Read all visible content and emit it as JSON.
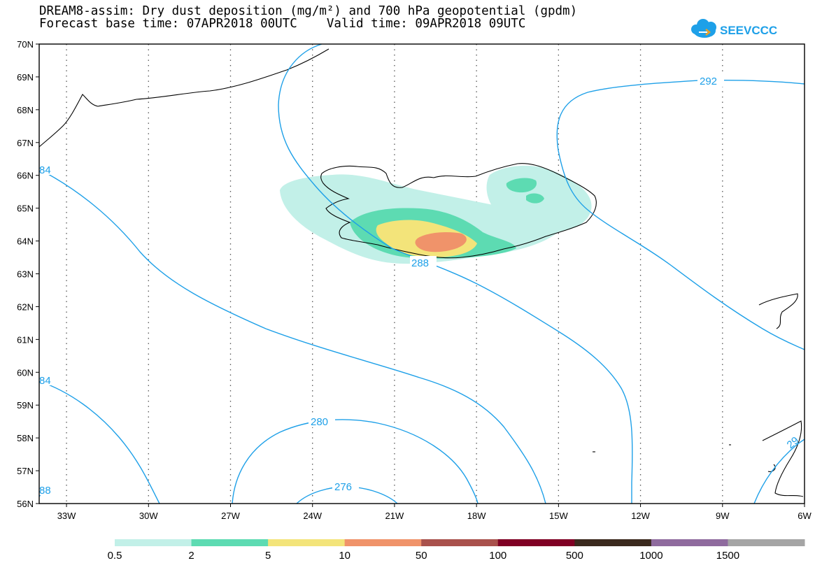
{
  "title": {
    "line1": "DREAM8-assim: Dry dust deposition (mg/m²) and 700 hPa geopotential (gpdm)",
    "line2": "Forecast base time: 07APR2018 00UTC    Valid time: 09APR2018 09UTC"
  },
  "logo": {
    "text": "SEEVCCC",
    "icon": "cloud-icon"
  },
  "map": {
    "lon_range": [
      -34,
      -6
    ],
    "lat_range": [
      56,
      70
    ],
    "lat_labels": [
      "70N",
      "69N",
      "68N",
      "67N",
      "66N",
      "65N",
      "64N",
      "63N",
      "62N",
      "61N",
      "60N",
      "59N",
      "58N",
      "57N",
      "56N"
    ],
    "lon_labels": [
      "33W",
      "30W",
      "27W",
      "24W",
      "21W",
      "18W",
      "15W",
      "12W",
      "9W",
      "6W"
    ],
    "contour_color": "#1ea0e8",
    "contour_labels": [
      "292",
      "84",
      "288",
      "84",
      "280",
      "276",
      "88",
      "29"
    ],
    "contour_levels": [
      276,
      280,
      284,
      288,
      292
    ]
  },
  "legend": {
    "colors": [
      "#c2f0e8",
      "#5ddbb2",
      "#f3e47a",
      "#f0936a",
      "#a9514c",
      "#800024",
      "#3b2a1e",
      "#8f6b9e",
      "#a5a5a5"
    ],
    "labels": [
      "0.5",
      "2",
      "5",
      "10",
      "50",
      "100",
      "500",
      "1000",
      "1500"
    ]
  }
}
